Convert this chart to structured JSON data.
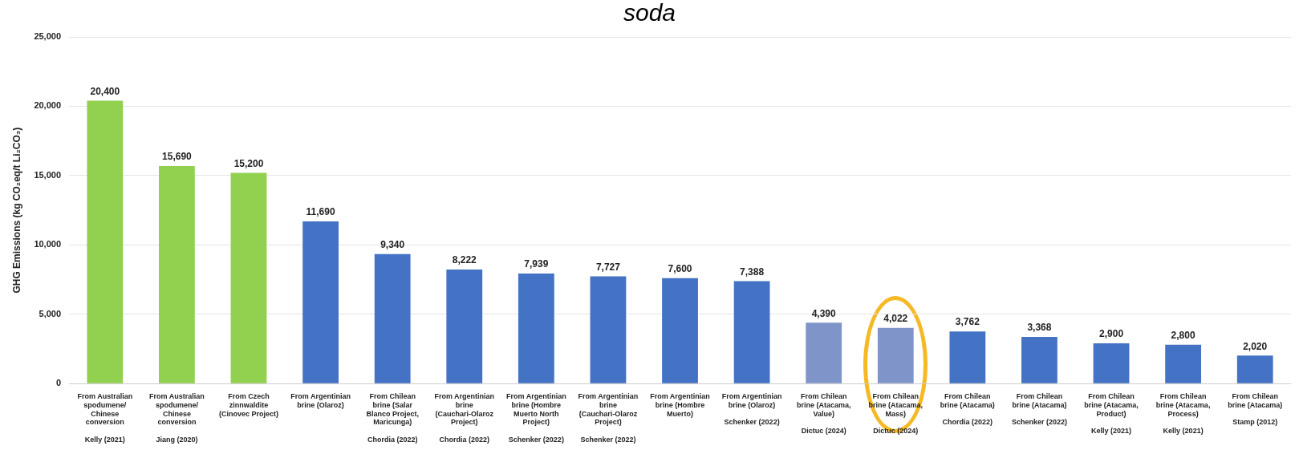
{
  "chart_data": {
    "type": "bar",
    "title": "soda",
    "ylabel": "GHG Emissions (kg CO₂eq/t Li₂CO₃)",
    "categories": [
      "From Australian spodumene/ Chinese conversion\nKelly (2021)",
      "From Australian spodumene/ Chinese conversion\nJiang (2020)",
      "From Czech zinnwaldite (Cinovec Project)",
      "From Argentinian brine (Olaroz)",
      "From Chilean brine (Salar Blanco Project, Maricunga)\nChordia (2022)",
      "From Argentinian brine (Cauchari-Olaroz Project)\nChordia (2022)",
      "From Argentinian brine (Hombre Muerto North Project)\nSchenker (2022)",
      "From Argentinian brine (Cauchari-Olaroz Project)\nSchenker (2022)",
      "From Argentinian brine (Hombre Muerto)",
      "From Argentinian brine (Olaroz)\nSchenker (2022)",
      "From Chilean brine (Atacama, Value)\nDictuc (2024)",
      "From Chilean brine (Atacama, Mass)\nDictuc (2024)",
      "From Chilean brine (Atacama)\nChordia (2022)",
      "From Chilean brine (Atacama)\nSchenker (2022)",
      "From Chilean brine (Atacama, Product)\nKelly (2021)",
      "From Chilean brine (Atacama, Process)\nKelly (2021)",
      "From Chilean brine (Atacama)\nStamp (2012)"
    ],
    "values": [
      20400,
      15690,
      15200,
      11690,
      9340,
      8222,
      7939,
      7727,
      7600,
      7388,
      4390,
      4022,
      3762,
      3368,
      2900,
      2800,
      2020
    ],
    "colors": [
      "#92d050",
      "#92d050",
      "#92d050",
      "#4472c4",
      "#4472c4",
      "#4472c4",
      "#4472c4",
      "#4472c4",
      "#4472c4",
      "#4472c4",
      "#7f95c9",
      "#7f95c9",
      "#4472c4",
      "#4472c4",
      "#4472c4",
      "#4472c4",
      "#4472c4"
    ],
    "value_labels": [
      "20,400",
      "15,690",
      "15,200",
      "11,690",
      "9,340",
      "8,222",
      "7,939",
      "7,727",
      "7,600",
      "7,388",
      "4,390",
      "4,022",
      "3,762",
      "3,368",
      "2,900",
      "2,800",
      "2,020"
    ],
    "ylim": [
      0,
      25000
    ],
    "yticks": [
      0,
      {
        "value": 5000,
        "label": "5,000"
      },
      {
        "value": 10000,
        "label": "10,000"
      },
      {
        "value": 15000,
        "label": "15,000"
      },
      {
        "value": 20000,
        "label": "20,000"
      },
      {
        "value": 25000,
        "label": "25,000"
      }
    ],
    "grid": "y"
  }
}
